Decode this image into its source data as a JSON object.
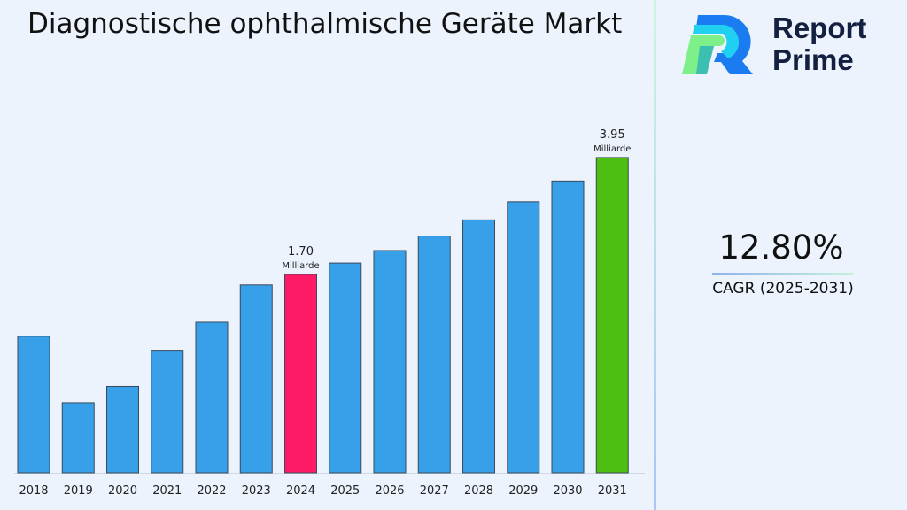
{
  "title": "Diagnostische ophthalmische Geräte Markt",
  "logo": {
    "line1": "Report",
    "line2": "Prime"
  },
  "cagr": {
    "value": "12.80%",
    "label": "CAGR (2025-2031)"
  },
  "colors": {
    "bar": "#38a0e8",
    "highlight_2024": "#fe1a66",
    "highlight_2031": "#4cbf10",
    "background": "#ecf3fd"
  },
  "chart_data": {
    "type": "bar",
    "categories": [
      "2018",
      "2019",
      "2020",
      "2021",
      "2022",
      "2023",
      "2024",
      "2025",
      "2026",
      "2027",
      "2028",
      "2029",
      "2030",
      "2031"
    ],
    "values": [
      1.17,
      0.6,
      0.74,
      1.05,
      1.29,
      1.61,
      1.7,
      1.92,
      2.16,
      2.44,
      2.75,
      3.1,
      3.5,
      3.95
    ],
    "data_labels": [
      {
        "category": "2024",
        "value": "1.70",
        "unit": "Milliarde"
      },
      {
        "category": "2031",
        "value": "3.95",
        "unit": "Milliarde"
      }
    ],
    "title": "",
    "xlabel": "",
    "ylabel": "",
    "grid": false,
    "legend": "none"
  }
}
